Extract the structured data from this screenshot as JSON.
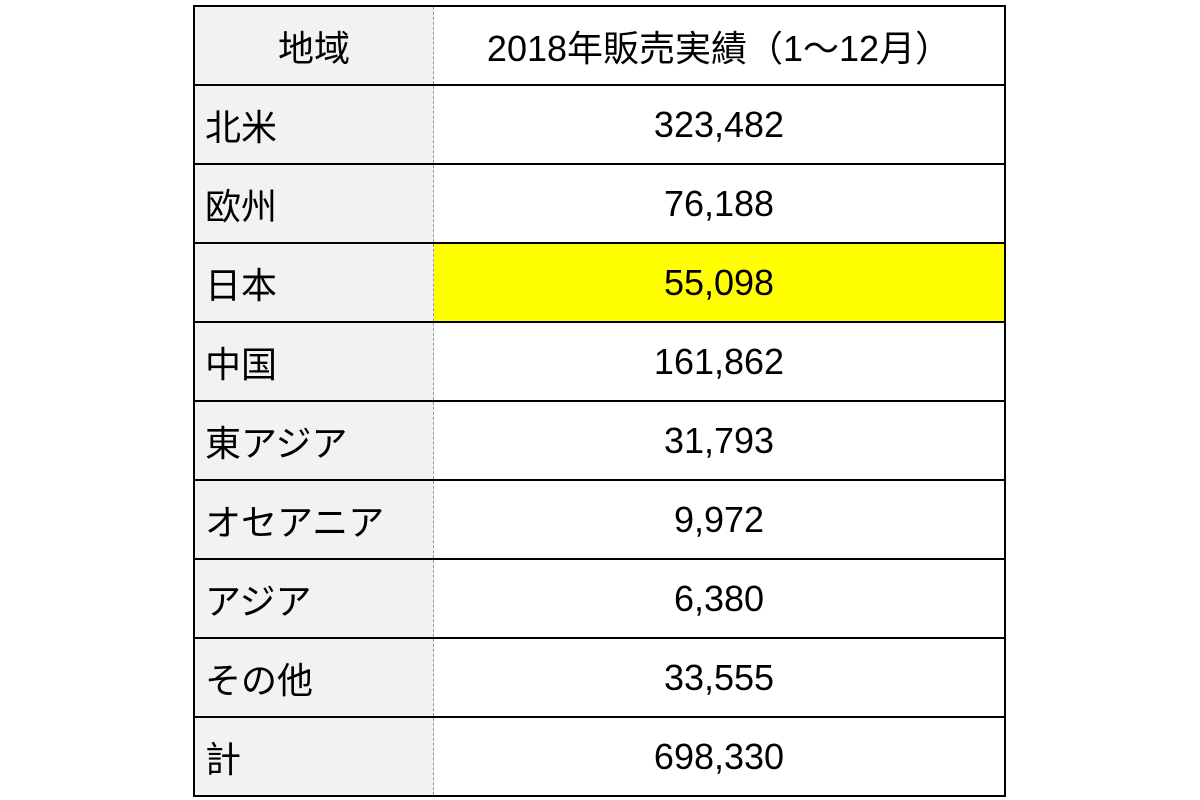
{
  "table": {
    "header": [
      "地域",
      "2018年販売実績（1～12月）"
    ],
    "rows": [
      [
        "北米",
        "323,482"
      ],
      [
        "欧州",
        "76,188"
      ],
      [
        "日本",
        "55,098"
      ],
      [
        "中国",
        "161,862"
      ],
      [
        "東アジア",
        "31,793"
      ],
      [
        "オセアニア",
        "9,972"
      ],
      [
        "アジア",
        "6,380"
      ],
      [
        "その他",
        "33,555"
      ],
      [
        "計",
        "698,330"
      ]
    ]
  }
}
